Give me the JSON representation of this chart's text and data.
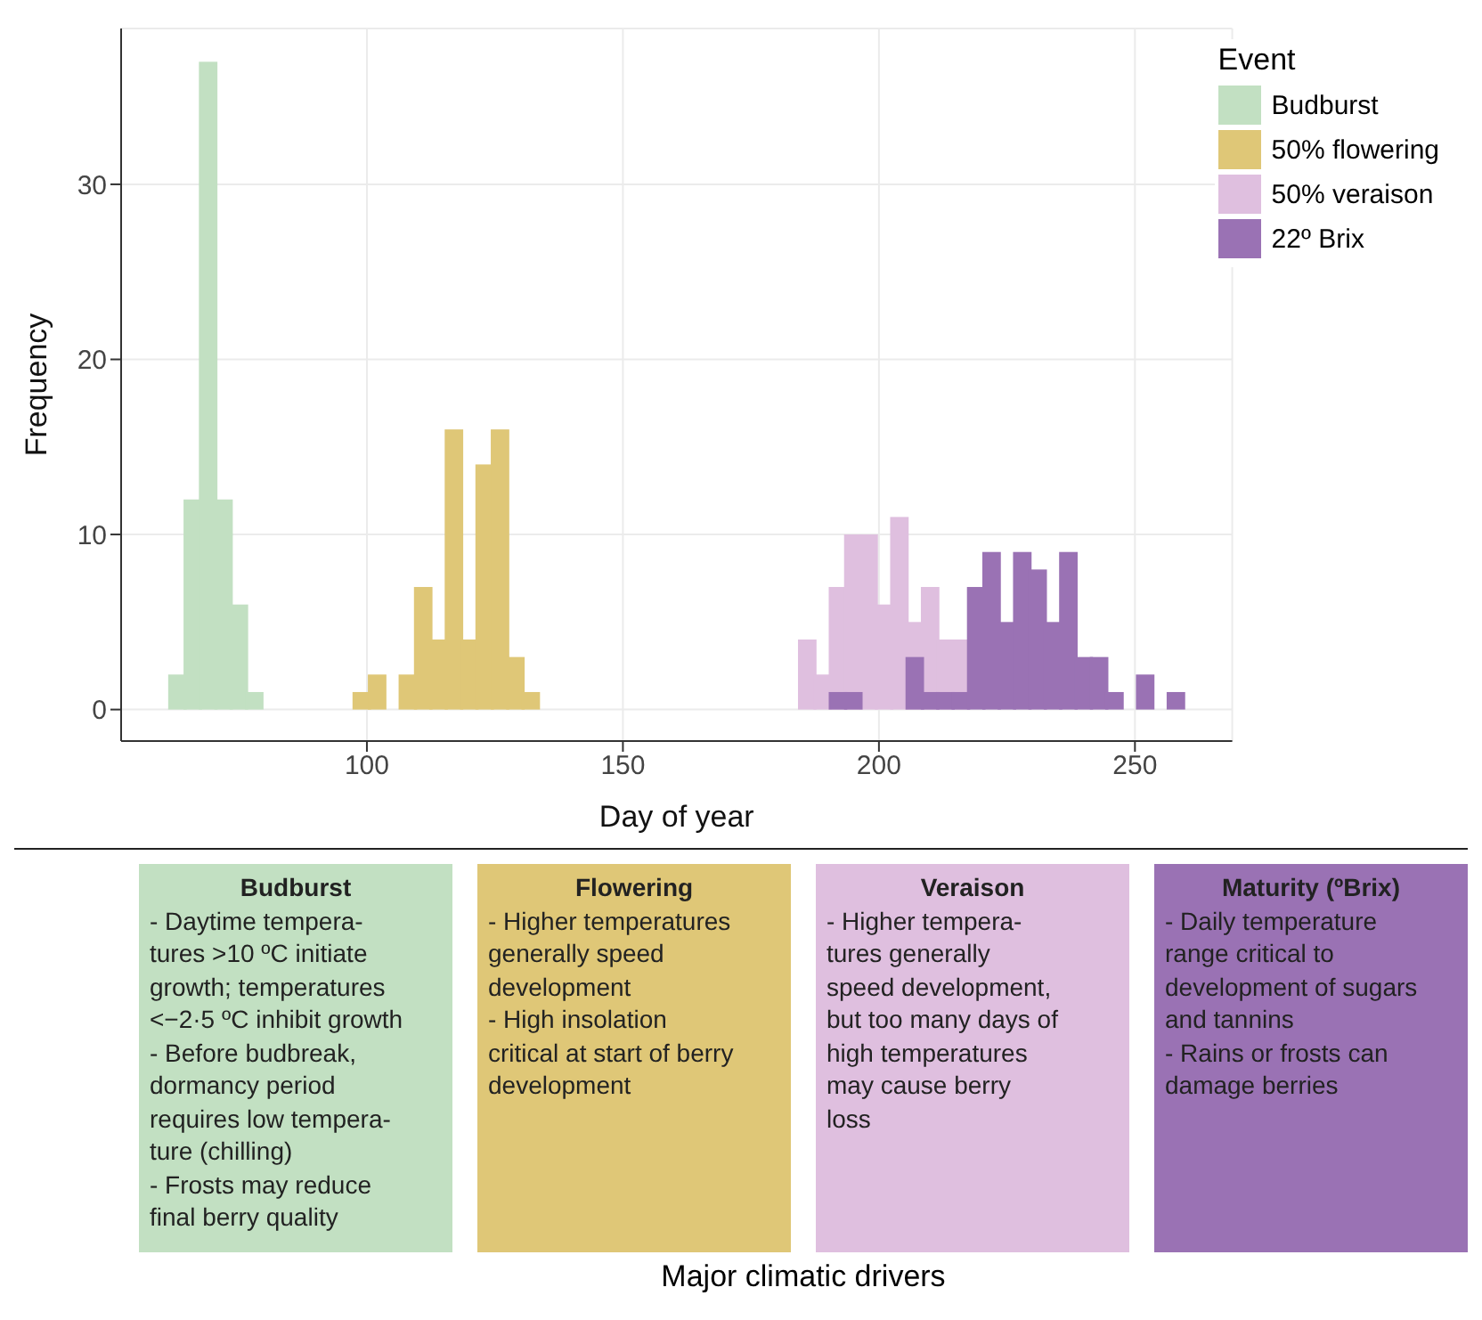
{
  "chart_data": {
    "type": "histogram",
    "xlabel": "Day of year",
    "ylabel": "Frequency",
    "legend_title": "Event",
    "bins": [
      61.5,
      64.5,
      67.5,
      70.5,
      73.5,
      76.5,
      79.5,
      82.5,
      85.5,
      88.5,
      91.5,
      94.5,
      97.5,
      100.5,
      103.5,
      106.5,
      109.5,
      112.5,
      115.5,
      118.5,
      121.5,
      124.5,
      127.5,
      130.5,
      133.5,
      136.5,
      139.5,
      142.5,
      145.5,
      148.5,
      151.5,
      154.5,
      157.5,
      160.5,
      163.5,
      166.5,
      169.5,
      172.5,
      175.5,
      178.5,
      181.5,
      184.5,
      187.5,
      190.5,
      193.5,
      196.5,
      199.5,
      202.5,
      205.5,
      208.5,
      211.5,
      214.5,
      217.5,
      220.5,
      223.5,
      226.5,
      229.5,
      232.5,
      235.5,
      238.5,
      241.5,
      244.5,
      247.5,
      250.5,
      253.5,
      256.5,
      259.5
    ],
    "series": [
      {
        "name": "Budburst",
        "color": "#c2e0c2",
        "values": [
          2,
          12,
          37,
          12,
          6,
          1,
          null,
          null,
          null,
          null,
          null,
          null,
          null,
          null,
          null,
          null,
          null,
          null,
          null,
          null,
          null,
          null,
          null,
          null,
          null,
          null,
          null,
          null,
          null,
          null,
          null,
          null,
          null,
          null,
          null,
          null,
          null,
          null,
          null,
          null,
          null,
          null,
          null,
          null,
          null,
          null,
          null,
          null,
          null,
          null,
          null,
          null,
          null,
          null,
          null,
          null,
          null,
          null,
          null,
          null,
          null,
          null,
          null,
          null,
          null,
          null
        ]
      },
      {
        "name": "50% flowering",
        "color": "#dfc777",
        "values": [
          null,
          null,
          null,
          null,
          null,
          null,
          null,
          null,
          null,
          null,
          null,
          null,
          1,
          2,
          0,
          2,
          7,
          4,
          16,
          4,
          14,
          16,
          3,
          1,
          null,
          null,
          null,
          null,
          null,
          null,
          null,
          null,
          null,
          null,
          null,
          null,
          null,
          null,
          null,
          null,
          null,
          null,
          null,
          null,
          null,
          null,
          null,
          null,
          null,
          null,
          null,
          null,
          null,
          null,
          null,
          null,
          null,
          null,
          null,
          null,
          null,
          null,
          null,
          null,
          null,
          null
        ]
      },
      {
        "name": "50% veraison",
        "color": "#dfbfdf",
        "values": [
          null,
          null,
          null,
          null,
          null,
          null,
          null,
          null,
          null,
          null,
          null,
          null,
          null,
          null,
          null,
          null,
          null,
          null,
          null,
          null,
          null,
          null,
          null,
          null,
          null,
          null,
          null,
          null,
          null,
          null,
          null,
          null,
          null,
          null,
          null,
          null,
          null,
          null,
          null,
          null,
          null,
          4,
          2,
          7,
          10,
          10,
          6,
          11,
          5,
          7,
          4,
          4,
          null,
          null,
          null,
          null,
          null,
          null,
          null,
          null,
          null,
          null,
          null,
          null,
          null,
          null
        ]
      },
      {
        "name": "22º Brix",
        "color": "#9a72b4",
        "values": [
          null,
          null,
          null,
          null,
          null,
          null,
          null,
          null,
          null,
          null,
          null,
          null,
          null,
          null,
          null,
          null,
          null,
          null,
          null,
          null,
          null,
          null,
          null,
          null,
          null,
          null,
          null,
          null,
          null,
          null,
          null,
          null,
          null,
          null,
          null,
          null,
          null,
          null,
          null,
          null,
          null,
          null,
          null,
          1,
          1,
          0,
          0,
          0,
          3,
          1,
          1,
          1,
          7,
          9,
          5,
          9,
          8,
          5,
          9,
          3,
          3,
          1,
          0,
          2,
          0,
          1
        ]
      }
    ],
    "xlim": [
      52,
      269
    ],
    "xticks": [
      100,
      150,
      200,
      250
    ],
    "ylim": [
      -1.8,
      38.9
    ],
    "yticks": [
      0,
      10,
      20,
      30
    ],
    "grid": true,
    "legend": "top right",
    "annotations": [
      "Budburst\n- Daytime tempera-\ntures >10 ºC initiate\ngrowth; temperatures\n<−2·5 ºC inhibit growth\n- Before budbreak,\ndormancy period\nrequires low tempera-\nture (chilling)\n- Frosts may reduce\nfinal berry quality",
      "Flowering\n- Higher temperatures\ngenerally speed\ndevelopment\n- High insolation\ncritical at start of berry\ndevelopment",
      "Veraison\n- Higher tempera-\ntures generally\nspeed development,\nbut too many days of\nhigh temperatures\nmay cause berry\nloss",
      "Maturity (ºBrix)\n- Daily temperature\nrange critical to\ndevelopment of sugars\nand tannins\n- Rains or frosts can\ndamage berries",
      "Major climatic drivers"
    ]
  }
}
